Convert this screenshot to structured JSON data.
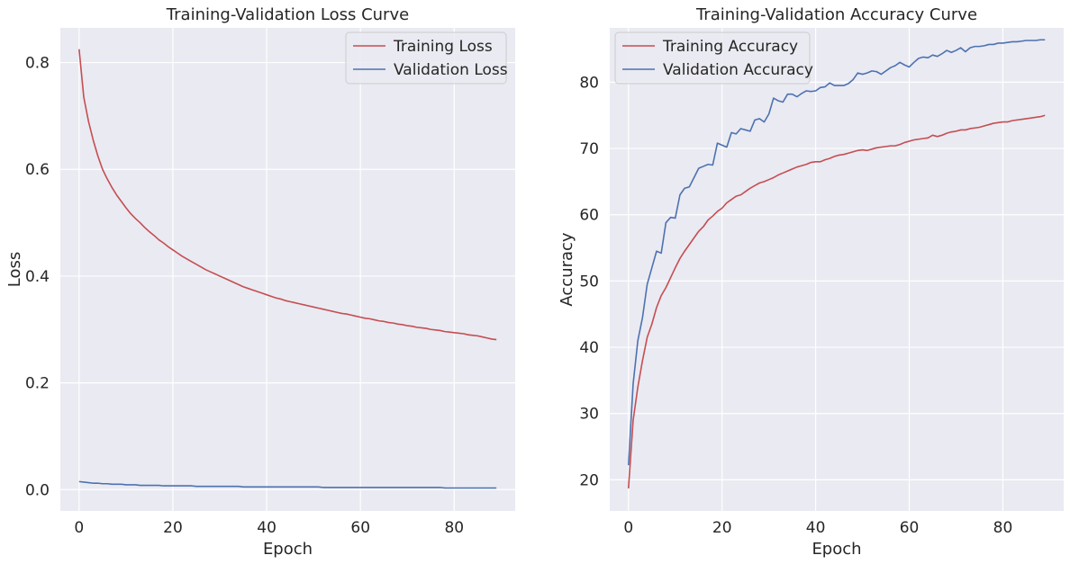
{
  "chart_data": [
    {
      "type": "line",
      "title": "Training-Validation Loss Curve",
      "xlabel": "Epoch",
      "ylabel": "Loss",
      "xlim": [
        -4,
        93
      ],
      "ylim": [
        -0.04,
        0.865
      ],
      "xticks": [
        0,
        20,
        40,
        60,
        80
      ],
      "yticks": [
        0.0,
        0.2,
        0.4,
        0.6,
        0.8
      ],
      "ytick_labels": [
        "0.0",
        "0.2",
        "0.4",
        "0.6",
        "0.8"
      ],
      "grid": true,
      "legend_position": "top-right",
      "series": [
        {
          "name": "Training Loss",
          "color": "#c44e52",
          "x_start": 0,
          "values": [
            0.825,
            0.735,
            0.69,
            0.655,
            0.625,
            0.6,
            0.582,
            0.566,
            0.552,
            0.54,
            0.528,
            0.517,
            0.508,
            0.5,
            0.491,
            0.483,
            0.476,
            0.468,
            0.462,
            0.455,
            0.449,
            0.443,
            0.437,
            0.432,
            0.427,
            0.422,
            0.417,
            0.412,
            0.408,
            0.404,
            0.4,
            0.396,
            0.392,
            0.388,
            0.384,
            0.38,
            0.377,
            0.374,
            0.371,
            0.368,
            0.365,
            0.362,
            0.359,
            0.357,
            0.354,
            0.352,
            0.35,
            0.348,
            0.346,
            0.344,
            0.342,
            0.34,
            0.338,
            0.336,
            0.334,
            0.332,
            0.33,
            0.329,
            0.327,
            0.325,
            0.323,
            0.321,
            0.32,
            0.318,
            0.316,
            0.315,
            0.313,
            0.312,
            0.31,
            0.309,
            0.307,
            0.306,
            0.304,
            0.303,
            0.302,
            0.3,
            0.299,
            0.298,
            0.296,
            0.295,
            0.294,
            0.293,
            0.292,
            0.29,
            0.289,
            0.288,
            0.286,
            0.284,
            0.282,
            0.281
          ]
        },
        {
          "name": "Validation Loss",
          "color": "#4c72b0",
          "x_start": 0,
          "values": [
            0.015,
            0.014,
            0.013,
            0.012,
            0.012,
            0.011,
            0.011,
            0.01,
            0.01,
            0.01,
            0.009,
            0.009,
            0.009,
            0.008,
            0.008,
            0.008,
            0.008,
            0.008,
            0.007,
            0.007,
            0.007,
            0.007,
            0.007,
            0.007,
            0.007,
            0.006,
            0.006,
            0.006,
            0.006,
            0.006,
            0.006,
            0.006,
            0.006,
            0.006,
            0.006,
            0.005,
            0.005,
            0.005,
            0.005,
            0.005,
            0.005,
            0.005,
            0.005,
            0.005,
            0.005,
            0.005,
            0.005,
            0.005,
            0.005,
            0.005,
            0.005,
            0.005,
            0.004,
            0.004,
            0.004,
            0.004,
            0.004,
            0.004,
            0.004,
            0.004,
            0.004,
            0.004,
            0.004,
            0.004,
            0.004,
            0.004,
            0.004,
            0.004,
            0.004,
            0.004,
            0.004,
            0.004,
            0.004,
            0.004,
            0.004,
            0.004,
            0.004,
            0.004,
            0.003,
            0.003,
            0.003,
            0.003,
            0.003,
            0.003,
            0.003,
            0.003,
            0.003,
            0.003,
            0.003,
            0.003
          ]
        }
      ]
    },
    {
      "type": "line",
      "title": "Training-Validation Accuracy Curve",
      "xlabel": "Epoch",
      "ylabel": "Accuracy",
      "xlim": [
        -4,
        93
      ],
      "ylim": [
        15.3,
        88.2
      ],
      "xticks": [
        0,
        20,
        40,
        60,
        80
      ],
      "yticks": [
        20,
        30,
        40,
        50,
        60,
        70,
        80
      ],
      "ytick_labels": [
        "20",
        "30",
        "40",
        "50",
        "60",
        "70",
        "80"
      ],
      "grid": true,
      "legend_position": "top-left",
      "series": [
        {
          "name": "Training Accuracy",
          "color": "#c44e52",
          "x_start": 0,
          "values": [
            18.7,
            29.0,
            34.0,
            38.0,
            41.5,
            43.5,
            46.0,
            47.8,
            49.0,
            50.5,
            52.0,
            53.4,
            54.5,
            55.5,
            56.5,
            57.5,
            58.2,
            59.2,
            59.8,
            60.5,
            61.0,
            61.8,
            62.3,
            62.8,
            63.0,
            63.5,
            64.0,
            64.4,
            64.8,
            65.0,
            65.3,
            65.6,
            66.0,
            66.3,
            66.6,
            66.9,
            67.2,
            67.4,
            67.6,
            67.9,
            68.0,
            68.0,
            68.3,
            68.5,
            68.8,
            69.0,
            69.1,
            69.3,
            69.5,
            69.7,
            69.8,
            69.7,
            69.9,
            70.1,
            70.2,
            70.3,
            70.4,
            70.4,
            70.6,
            70.9,
            71.1,
            71.3,
            71.4,
            71.5,
            71.6,
            72.0,
            71.8,
            72.0,
            72.3,
            72.5,
            72.6,
            72.8,
            72.8,
            73.0,
            73.1,
            73.2,
            73.4,
            73.6,
            73.8,
            73.9,
            74.0,
            74.0,
            74.2,
            74.3,
            74.4,
            74.5,
            74.6,
            74.7,
            74.8,
            75.0
          ]
        },
        {
          "name": "Validation Accuracy",
          "color": "#4c72b0",
          "x_start": 0,
          "values": [
            22.2,
            34.5,
            41.0,
            44.5,
            49.5,
            52.0,
            54.5,
            54.2,
            58.8,
            59.6,
            59.5,
            63.0,
            64.0,
            64.2,
            65.6,
            67.0,
            67.3,
            67.6,
            67.5,
            70.8,
            70.5,
            70.2,
            72.4,
            72.2,
            73.0,
            72.8,
            72.6,
            74.3,
            74.5,
            74.0,
            75.2,
            77.6,
            77.2,
            77.0,
            78.2,
            78.2,
            77.8,
            78.3,
            78.7,
            78.6,
            78.7,
            79.2,
            79.3,
            79.9,
            79.5,
            79.5,
            79.5,
            79.8,
            80.4,
            81.4,
            81.2,
            81.4,
            81.7,
            81.6,
            81.2,
            81.7,
            82.2,
            82.5,
            83.0,
            82.6,
            82.3,
            83.0,
            83.6,
            83.8,
            83.7,
            84.1,
            83.9,
            84.3,
            84.8,
            84.5,
            84.8,
            85.2,
            84.6,
            85.2,
            85.4,
            85.4,
            85.5,
            85.7,
            85.7,
            85.9,
            85.9,
            86.0,
            86.1,
            86.1,
            86.2,
            86.3,
            86.3,
            86.3,
            86.4,
            86.4
          ]
        }
      ]
    }
  ]
}
